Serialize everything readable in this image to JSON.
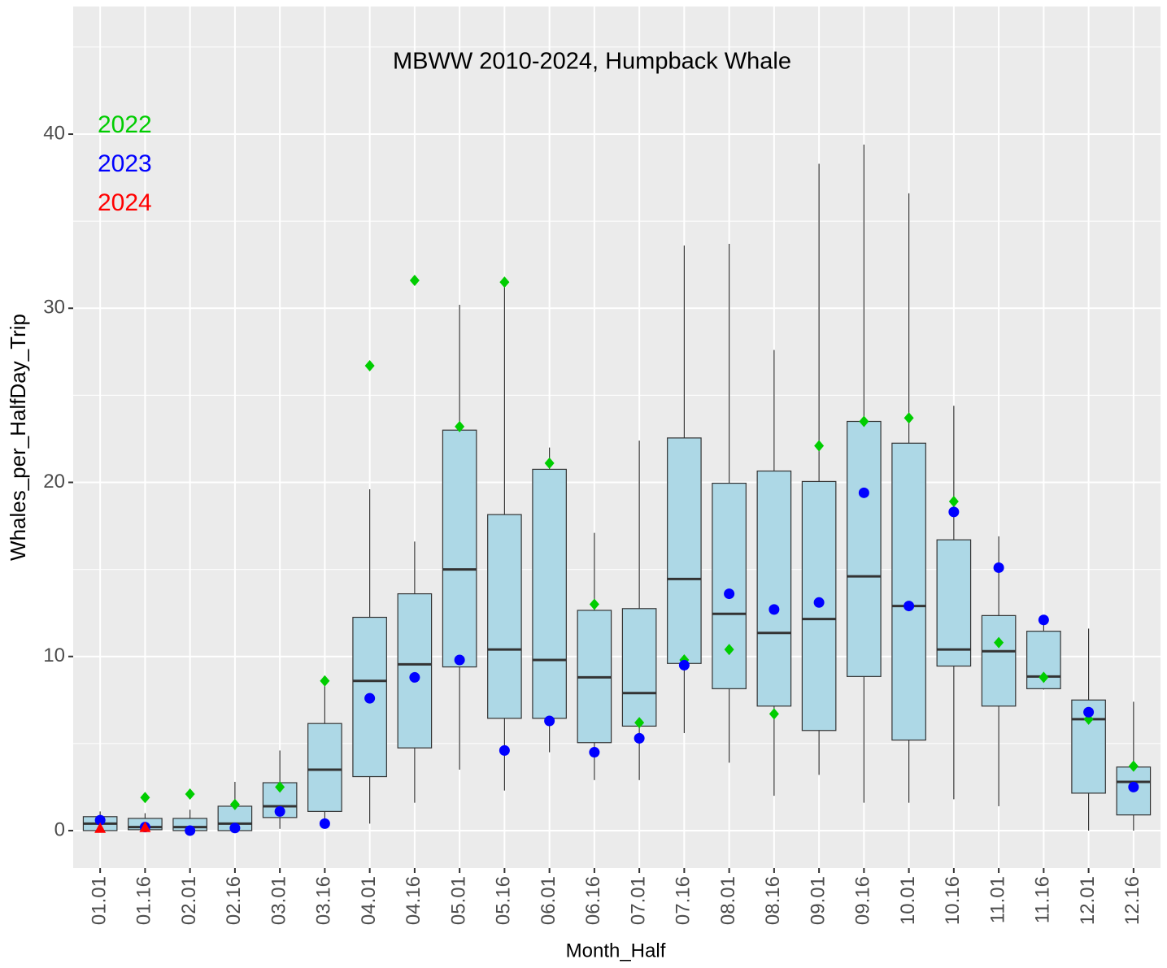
{
  "chart_data": {
    "type": "box",
    "title": "MBWW 2010-2024, Humpback Whale",
    "x_label": "Month_Half",
    "y_label": "Whales_per_HalfDay_Trip",
    "categories": [
      "01.01",
      "01.16",
      "02.01",
      "02.16",
      "03.01",
      "03.16",
      "04.01",
      "04.16",
      "05.01",
      "05.16",
      "06.01",
      "06.16",
      "07.01",
      "07.16",
      "08.01",
      "08.16",
      "09.01",
      "09.16",
      "10.01",
      "10.16",
      "11.01",
      "11.16",
      "12.01",
      "12.16"
    ],
    "box_stats": {
      "whisker_low": [
        0,
        0,
        0,
        0,
        0.1,
        0.3,
        0.4,
        1.6,
        3.5,
        2.3,
        4.5,
        2.9,
        2.9,
        5.6,
        3.9,
        2.0,
        3.2,
        1.6,
        1.6,
        1.8,
        1.4,
        8.1,
        0,
        0
      ],
      "q1": [
        0,
        0.05,
        0,
        0,
        0.75,
        1.1,
        3.1,
        4.75,
        9.4,
        6.45,
        6.45,
        5.05,
        6.0,
        9.6,
        8.15,
        7.15,
        5.75,
        8.85,
        5.2,
        9.45,
        7.15,
        8.15,
        2.15,
        0.9
      ],
      "median": [
        0.4,
        0.2,
        0.2,
        0.4,
        1.4,
        3.5,
        8.6,
        9.55,
        15.0,
        10.4,
        9.8,
        8.8,
        7.9,
        14.45,
        12.45,
        11.35,
        12.15,
        14.6,
        12.9,
        10.4,
        10.3,
        8.85,
        6.4,
        2.8
      ],
      "q3": [
        0.8,
        0.7,
        0.7,
        1.4,
        2.75,
        6.15,
        12.25,
        13.6,
        23.0,
        18.15,
        20.75,
        12.65,
        12.75,
        22.55,
        19.95,
        20.65,
        20.05,
        23.5,
        22.25,
        16.7,
        12.35,
        11.45,
        7.5,
        3.65
      ],
      "whisker_high": [
        1.1,
        1.0,
        1.2,
        2.8,
        4.6,
        8.3,
        19.6,
        16.6,
        30.2,
        31.4,
        22.0,
        17.1,
        22.4,
        33.6,
        33.7,
        27.6,
        38.3,
        39.4,
        36.6,
        24.4,
        16.9,
        12.0,
        11.6,
        7.4
      ]
    },
    "box_color": "#add8e6",
    "series": [
      {
        "name": "2022",
        "color": "#00cd00",
        "shape": "diamond",
        "values": [
          null,
          1.9,
          2.1,
          1.5,
          2.5,
          8.6,
          26.7,
          31.6,
          23.2,
          31.5,
          21.1,
          13.0,
          6.2,
          9.8,
          10.4,
          6.7,
          22.1,
          23.5,
          23.7,
          18.9,
          10.8,
          8.8,
          6.4,
          3.7
        ]
      },
      {
        "name": "2023",
        "color": "#0000ff",
        "shape": "circle",
        "values": [
          0.6,
          0.2,
          0.0,
          0.15,
          1.1,
          0.4,
          7.6,
          8.8,
          9.8,
          4.6,
          6.3,
          4.5,
          5.3,
          9.5,
          13.6,
          12.7,
          13.1,
          19.4,
          12.9,
          18.3,
          15.1,
          12.1,
          6.8,
          2.5
        ]
      },
      {
        "name": "2024",
        "color": "#ff0000",
        "shape": "triangle",
        "values": [
          0.1,
          0.15,
          null,
          null,
          null,
          null,
          null,
          null,
          null,
          null,
          null,
          null,
          null,
          null,
          null,
          null,
          null,
          null,
          null,
          null,
          null,
          null,
          null,
          null
        ]
      }
    ],
    "ylim": [
      -2.15,
      47.33
    ],
    "yticks": [
      0,
      10,
      20,
      30,
      40
    ],
    "minor_yticks": [
      5,
      15,
      25,
      35,
      45
    ],
    "grid": true,
    "legend": "top-left"
  }
}
